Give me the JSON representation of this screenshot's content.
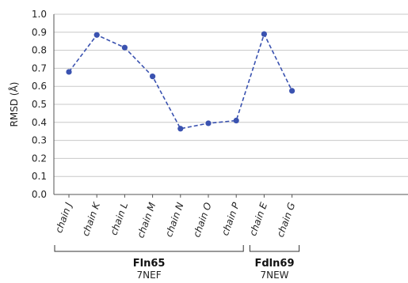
{
  "chart_data": {
    "type": "line",
    "categories": [
      "chain J",
      "chain K",
      "chain L",
      "chain M",
      "chain N",
      "chain O",
      "chain P",
      "chain E",
      "chain G"
    ],
    "series": [
      {
        "values": [
          0.68,
          0.885,
          0.815,
          0.655,
          0.365,
          0.395,
          0.41,
          0.89,
          0.575
        ]
      }
    ],
    "ylabel": "RMSD (Å)",
    "ylim": [
      0,
      1.0
    ],
    "yticks": [
      "0.0",
      "0.1",
      "0.2",
      "0.3",
      "0.4",
      "0.5",
      "0.6",
      "0.7",
      "0.8",
      "0.9",
      "1.0"
    ],
    "grid": "horizontal",
    "line_style": "dashed",
    "color": "#3a52b0",
    "groups": [
      {
        "name": "Fln65",
        "sub": "7NEF",
        "start": 0,
        "end": 6
      },
      {
        "name": "Fdln69",
        "sub": "7NEW",
        "start": 7,
        "end": 8
      }
    ]
  }
}
